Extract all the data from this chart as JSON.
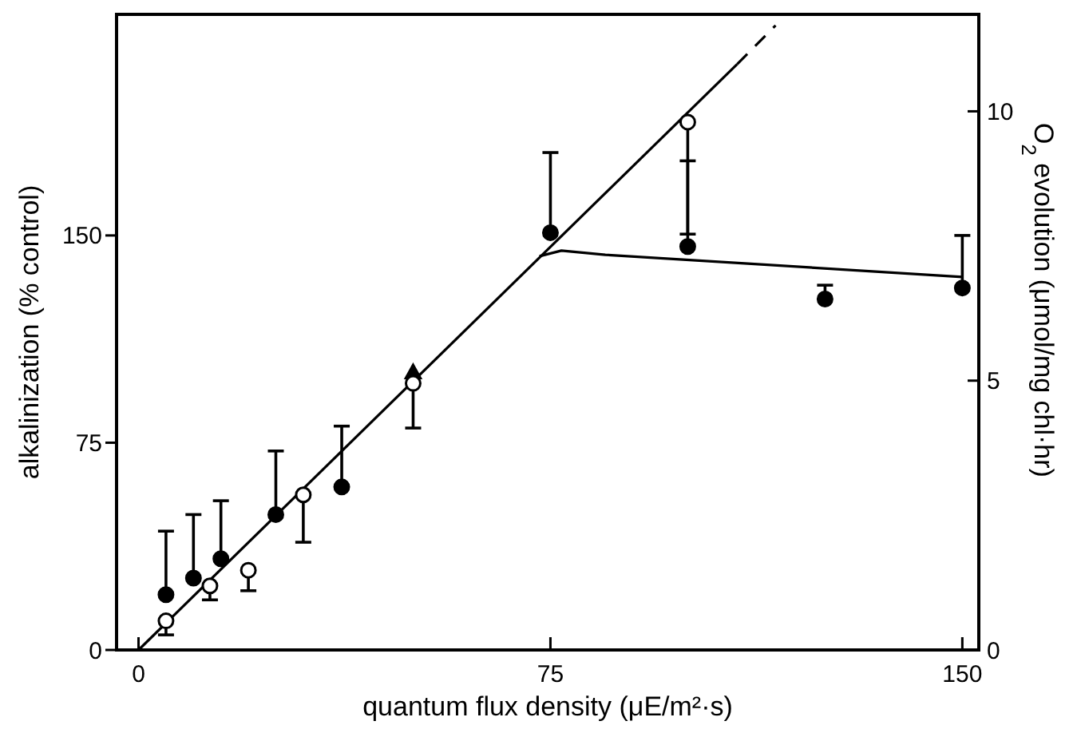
{
  "chart_data": {
    "type": "scatter",
    "xlabel": "quantum flux density (μE/m²·s)",
    "ylabel": "alkalinization (% control)",
    "y2label": "O$_{2}$ evolution (μmol/mg chl·hr)",
    "xlim": [
      -4,
      153
    ],
    "xticks": [
      0,
      75,
      150
    ],
    "ylim": [
      0,
      230
    ],
    "yticks": [
      0,
      75,
      150
    ],
    "y2lim": [
      0,
      11.8
    ],
    "y2ticks": [
      0,
      5,
      10
    ],
    "grid": false,
    "series": [
      {
        "marker": "circle",
        "color": "#000000",
        "x": [
          5,
          10,
          15,
          25,
          37,
          75,
          100,
          125,
          150
        ],
        "values": [
          20,
          26,
          33,
          49,
          59,
          151,
          146,
          127,
          131
        ],
        "errors": [
          [
            20,
            43
          ],
          [
            26,
            49
          ],
          [
            33,
            54
          ],
          [
            49,
            72
          ],
          [
            59,
            81
          ],
          [
            151,
            180
          ],
          [
            146,
            177
          ],
          [
            127,
            132
          ],
          [
            131,
            150
          ]
        ]
      },
      {
        "marker": "triangle",
        "color": "#000000",
        "x": [
          50
        ],
        "values": [
          100
        ]
      },
      {
        "marker": "circle",
        "color": "#000000",
        "axis": "y2",
        "x": [
          5,
          13,
          20,
          30,
          50,
          100
        ],
        "values": [
          0.54,
          1.19,
          1.48,
          2.88,
          4.95,
          9.8
        ],
        "errors": [
          [
            0.28,
            0.54
          ],
          [
            0.93,
            1.19
          ],
          [
            1.1,
            1.48
          ],
          [
            2.0,
            2.88
          ],
          [
            4.12,
            4.95
          ],
          [
            7.72,
            9.8
          ]
        ]
      },
      {
        "type": "line",
        "marker": "none",
        "line_style": "solid",
        "color": "#000000",
        "x": [
          0,
          109
        ],
        "values": [
          0,
          212
        ]
      },
      {
        "type": "line",
        "marker": "none",
        "line_style": "dashed",
        "color": "#000000",
        "x": [
          109,
          116
        ],
        "values": [
          212,
          226
        ]
      },
      {
        "type": "line",
        "marker": "none",
        "line_style": "solid",
        "color": "#000000",
        "x": [
          73,
          77,
          85,
          150
        ],
        "values": [
          142.5,
          144.5,
          143,
          135
        ]
      }
    ]
  }
}
